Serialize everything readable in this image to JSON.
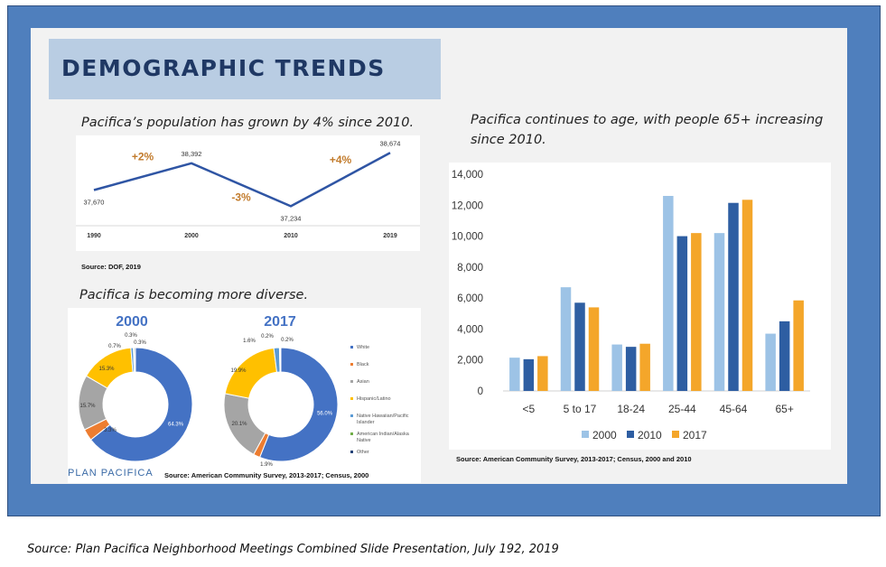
{
  "slide": {
    "title": "DEMOGRAPHIC TRENDS",
    "caption_population": "Pacifica’s population has grown by 4% since 2010.",
    "source_population": "Source: DOF, 2019",
    "caption_diversity": "Pacifica is becoming more diverse.",
    "source_diversity": "Source: American Community Survey, 2013-2017; Census, 2000",
    "caption_age": "Pacifica continues to age, with people 65+ increasing since 2010.",
    "source_age": "Source: American Community Survey, 2013-2017; Census, 2000 and 2010",
    "brand": "PLAN PACIFICA"
  },
  "footer": "Source: Plan Pacifica Neighborhood Meetings Combined Slide Presentation, July 192, 2019",
  "chart_data": [
    {
      "type": "line",
      "categories": [
        "1990",
        "2000",
        "2010",
        "2019"
      ],
      "values": [
        37670,
        38392,
        37234,
        38674
      ],
      "value_labels": [
        "37,670",
        "38,392",
        "37,234",
        "38,674"
      ],
      "annotations": [
        {
          "text": "+2%",
          "between": [
            "1990",
            "2000"
          ],
          "position": "above"
        },
        {
          "text": "-3%",
          "between": [
            "2000",
            "2010"
          ],
          "position": "below"
        },
        {
          "text": "+4%",
          "between": [
            "2010",
            "2019"
          ],
          "position": "above"
        }
      ],
      "line_color": "#2f55a4",
      "annotation_color": "#c27b2c"
    },
    {
      "type": "pie",
      "title": "2000",
      "donut": true,
      "slices": [
        {
          "name": "White",
          "value": 64.3,
          "label": "64.3%",
          "color": "#4472c4"
        },
        {
          "name": "Black",
          "value": 3.3,
          "label": "3.3%",
          "color": "#ed7d31"
        },
        {
          "name": "Asian",
          "value": 15.7,
          "label": "15.7%",
          "color": "#a5a5a5"
        },
        {
          "name": "Hispanic/Latino",
          "value": 15.3,
          "label": "15.3%",
          "color": "#ffc000"
        },
        {
          "name": "Native Hawaiian/Pacific Islander",
          "value": 0.7,
          "label": "0.7%",
          "color": "#5b9bd5"
        },
        {
          "name": "American Indian/Alaska Native",
          "value": 0.3,
          "label": "0.3%",
          "color": "#70ad47"
        },
        {
          "name": "Other",
          "value": 0.3,
          "label": "0.3%",
          "color": "#264478"
        }
      ]
    },
    {
      "type": "pie",
      "title": "2017",
      "donut": true,
      "slices": [
        {
          "name": "White",
          "value": 56.0,
          "label": "56.0%",
          "color": "#4472c4"
        },
        {
          "name": "Black",
          "value": 1.9,
          "label": "1.9%",
          "color": "#ed7d31"
        },
        {
          "name": "Asian",
          "value": 20.1,
          "label": "20.1%",
          "color": "#a5a5a5"
        },
        {
          "name": "Hispanic/Latino",
          "value": 19.9,
          "label": "19.9%",
          "color": "#ffc000"
        },
        {
          "name": "Native Hawaiian/Pacific Islander",
          "value": 1.6,
          "label": "1.6%",
          "color": "#5b9bd5"
        },
        {
          "name": "American Indian/Alaska Native",
          "value": 0.2,
          "label": "0.2%",
          "color": "#70ad47"
        },
        {
          "name": "Other",
          "value": 0.2,
          "label": "0.2%",
          "color": "#264478"
        }
      ],
      "legend": [
        "White",
        "Black",
        "Asian",
        "Hispanic/Latino",
        "Native Hawaiian/Pacific Islander",
        "American Indian/Alaska Native",
        "Other"
      ],
      "legend_placement": "right"
    },
    {
      "type": "bar",
      "categories": [
        "<5",
        "5 to 17",
        "18-24",
        "25-44",
        "45-64",
        "65+"
      ],
      "series": [
        {
          "name": "2000",
          "values": [
            2150,
            6700,
            3000,
            12600,
            10200,
            3700
          ],
          "color": "#9dc3e6"
        },
        {
          "name": "2010",
          "values": [
            2050,
            5700,
            2850,
            10000,
            12150,
            4500
          ],
          "color": "#2e5ea2"
        },
        {
          "name": "2017",
          "values": [
            2250,
            5400,
            3050,
            10200,
            12350,
            5850
          ],
          "color": "#f4a62a"
        }
      ],
      "ylim": [
        0,
        14000
      ],
      "yticks": [
        "0",
        "2,000",
        "4,000",
        "6,000",
        "8,000",
        "10,000",
        "12,000",
        "14,000"
      ],
      "grid": false,
      "legend_placement": "bottom"
    }
  ]
}
